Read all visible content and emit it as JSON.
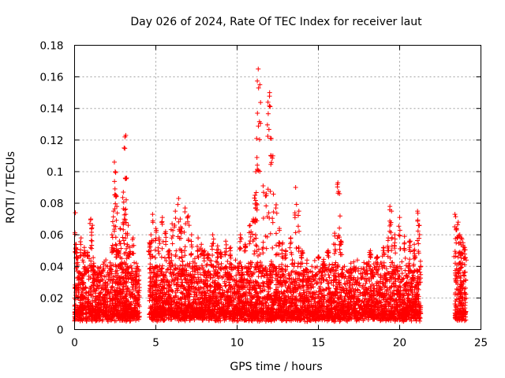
{
  "chart_data": {
    "type": "scatter",
    "title": "Day 026 of 2024, Rate Of TEC Index for receiver laut",
    "xlabel": "GPS time / hours",
    "ylabel": "ROTI / TECUs",
    "xlim": [
      0,
      25
    ],
    "ylim": [
      0,
      0.18
    ],
    "xticks": [
      0,
      5,
      10,
      15,
      20,
      25
    ],
    "xtick_labels": [
      "0",
      "5",
      "10",
      "15",
      "20",
      "25"
    ],
    "yticks": [
      0,
      0.02,
      0.04,
      0.06,
      0.08,
      0.1,
      0.12,
      0.14,
      0.16,
      0.18
    ],
    "ytick_labels": [
      "0",
      "0.02",
      "0.04",
      "0.06",
      "0.08",
      "0.1",
      "0.12",
      "0.14",
      "0.16",
      "0.18"
    ],
    "grid": true,
    "marker": "+",
    "color": "#ff0000",
    "series": [
      {
        "name": "ROTI",
        "x": [
          0.05,
          0.1,
          0.15,
          0.2,
          0.25,
          0.3,
          0.4,
          0.5,
          0.6,
          0.7,
          0.8,
          0.9,
          1.0,
          1.1,
          1.2,
          1.3,
          1.5,
          1.7,
          1.9,
          2.1,
          2.3,
          2.4,
          2.45,
          2.5,
          2.55,
          2.6,
          2.7,
          2.8,
          2.9,
          3.0,
          3.05,
          3.1,
          3.15,
          3.2,
          3.3,
          3.4,
          3.6,
          3.8,
          3.95,
          4.6,
          4.7,
          4.8,
          5.0,
          5.2,
          5.4,
          5.6,
          5.8,
          6.0,
          6.2,
          6.4,
          6.5,
          6.6,
          6.8,
          7.0,
          7.2,
          7.4,
          7.6,
          7.8,
          8.0,
          8.2,
          8.5,
          8.8,
          9.0,
          9.3,
          9.6,
          9.9,
          10.2,
          10.5,
          10.8,
          11.0,
          11.1,
          11.15,
          11.2,
          11.25,
          11.3,
          11.4,
          11.6,
          11.8,
          11.9,
          12.0,
          12.1,
          12.2,
          12.4,
          12.6,
          12.8,
          13.0,
          13.3,
          13.5,
          13.6,
          13.8,
          14.0,
          14.3,
          14.6,
          15.0,
          15.3,
          15.6,
          16.0,
          16.2,
          16.3,
          16.4,
          16.6,
          17.0,
          17.4,
          17.8,
          18.2,
          18.6,
          19.0,
          19.3,
          19.4,
          19.5,
          19.7,
          20.0,
          20.3,
          20.6,
          20.9,
          21.1,
          21.2,
          21.3,
          23.4,
          23.5,
          23.6,
          23.7,
          23.8,
          23.9,
          24.0,
          24.1
        ],
        "y": [
          0.074,
          0.054,
          0.046,
          0.041,
          0.036,
          0.033,
          0.058,
          0.044,
          0.052,
          0.038,
          0.049,
          0.045,
          0.07,
          0.066,
          0.04,
          0.025,
          0.023,
          0.027,
          0.03,
          0.035,
          0.06,
          0.075,
          0.106,
          0.1,
          0.085,
          0.078,
          0.05,
          0.064,
          0.045,
          0.087,
          0.115,
          0.122,
          0.123,
          0.096,
          0.066,
          0.052,
          0.058,
          0.042,
          0.038,
          0.055,
          0.06,
          0.073,
          0.064,
          0.058,
          0.071,
          0.062,
          0.05,
          0.067,
          0.075,
          0.083,
          0.07,
          0.064,
          0.077,
          0.072,
          0.06,
          0.045,
          0.058,
          0.054,
          0.05,
          0.048,
          0.06,
          0.053,
          0.049,
          0.056,
          0.052,
          0.044,
          0.06,
          0.054,
          0.066,
          0.07,
          0.085,
          0.1,
          0.121,
          0.137,
          0.165,
          0.155,
          0.091,
          0.086,
          0.144,
          0.15,
          0.121,
          0.11,
          0.079,
          0.064,
          0.055,
          0.05,
          0.058,
          0.04,
          0.09,
          0.075,
          0.05,
          0.044,
          0.04,
          0.046,
          0.043,
          0.05,
          0.061,
          0.093,
          0.086,
          0.056,
          0.04,
          0.042,
          0.044,
          0.038,
          0.05,
          0.046,
          0.052,
          0.058,
          0.078,
          0.075,
          0.06,
          0.071,
          0.059,
          0.056,
          0.054,
          0.075,
          0.066,
          0.04,
          0.073,
          0.064,
          0.068,
          0.06,
          0.058,
          0.055,
          0.052,
          0.044
        ]
      }
    ],
    "baseline_band": {
      "segments": [
        [
          0.0,
          4.0
        ],
        [
          4.6,
          21.3
        ],
        [
          23.4,
          24.1
        ]
      ],
      "low": 0.005,
      "high": 0.045
    }
  }
}
